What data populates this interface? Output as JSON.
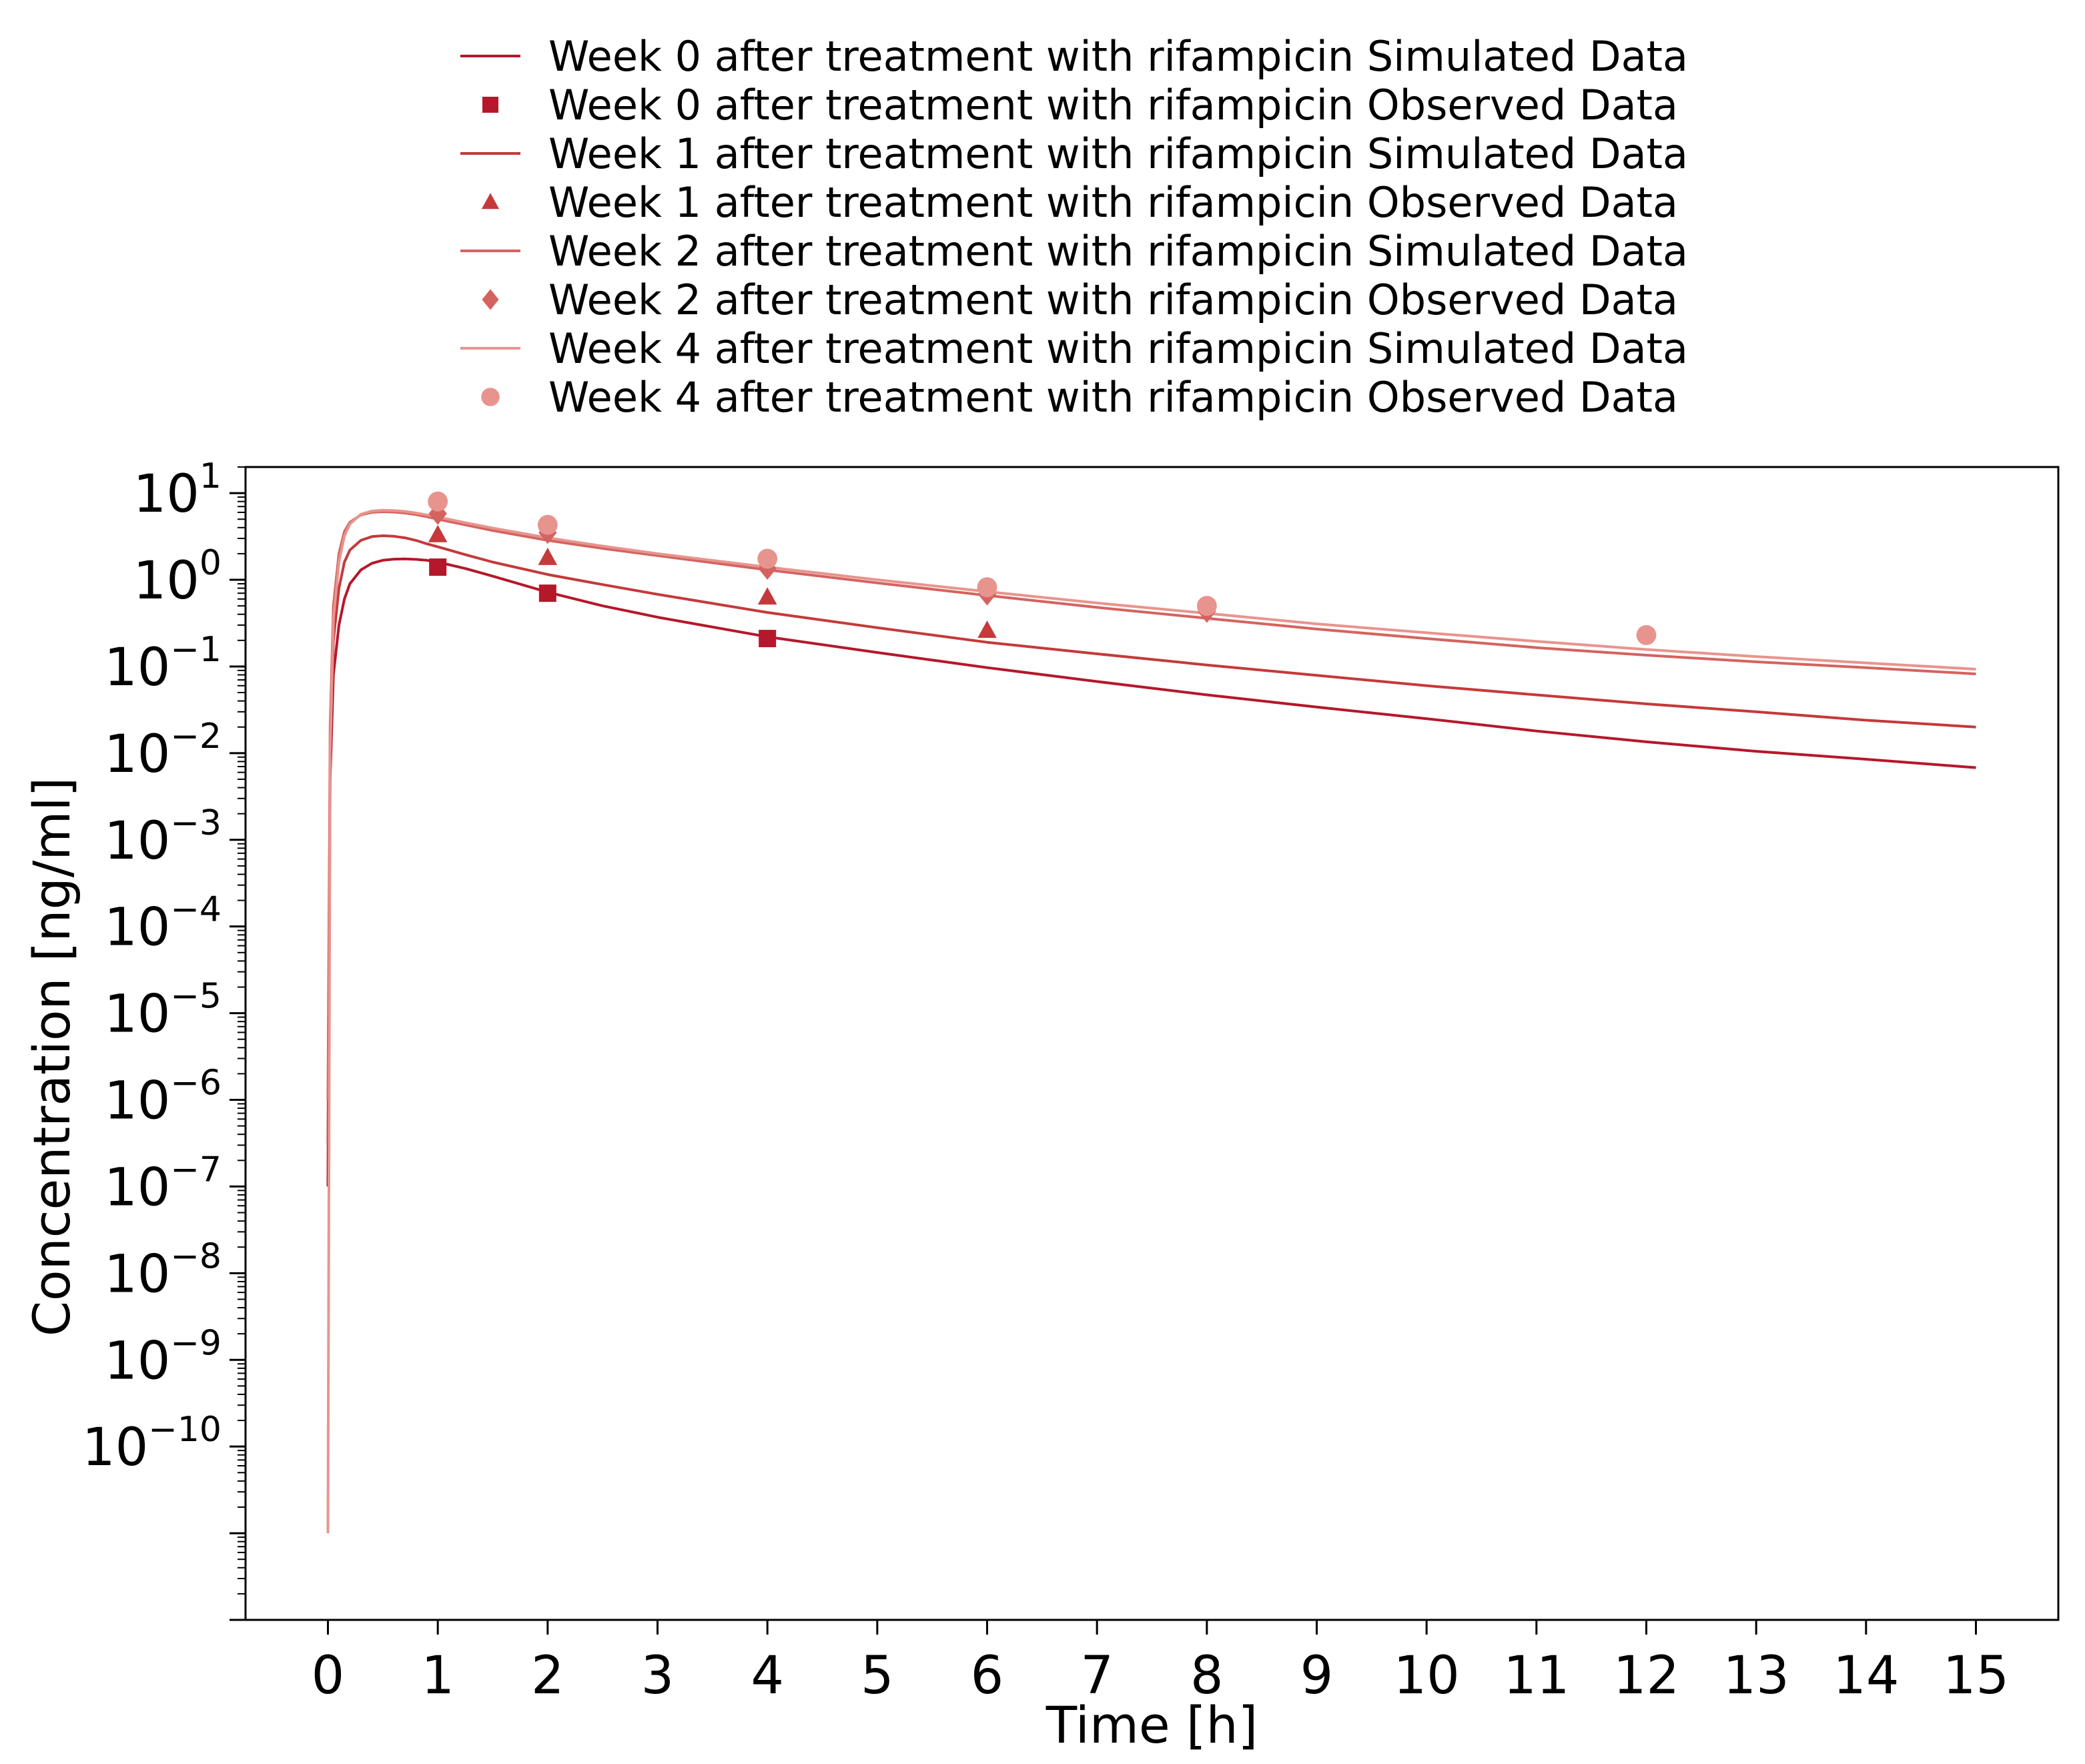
{
  "chart_data": {
    "type": "line",
    "xlabel": "Time [h]",
    "ylabel": "Concentration [ng/ml]",
    "xlim": [
      -0.75,
      15.75
    ],
    "x_ticks": [
      0,
      1,
      2,
      3,
      4,
      5,
      6,
      7,
      8,
      9,
      10,
      11,
      12,
      13,
      14,
      15
    ],
    "y_scale": "log",
    "ylim": [
      1e-12,
      20
    ],
    "y_tick_exponents": [
      1,
      0,
      -1,
      -2,
      -3,
      -4,
      -5,
      -6,
      -7,
      -8,
      -9,
      -10
    ],
    "y_tick_base": "10",
    "grid": false,
    "legend_position": "top-center",
    "series": [
      {
        "name": "Week 0 after treatment with rifampicin Simulated Data",
        "kind": "line",
        "color": "#b5172b",
        "x": [
          0,
          0.02,
          0.05,
          0.1,
          0.15,
          0.2,
          0.3,
          0.4,
          0.5,
          0.6,
          0.7,
          0.8,
          0.9,
          1.0,
          1.25,
          1.5,
          2.0,
          2.5,
          3.0,
          4.0,
          5.0,
          6.0,
          7.0,
          8.0,
          9.0,
          10.0,
          11.0,
          12.0,
          13.0,
          14.0,
          15.0
        ],
        "y": [
          1e-07,
          0.005,
          0.08,
          0.3,
          0.6,
          0.9,
          1.3,
          1.55,
          1.68,
          1.73,
          1.74,
          1.72,
          1.68,
          1.6,
          1.35,
          1.1,
          0.72,
          0.5,
          0.37,
          0.22,
          0.145,
          0.097,
          0.067,
          0.047,
          0.034,
          0.025,
          0.018,
          0.0135,
          0.0105,
          0.0085,
          0.0068
        ]
      },
      {
        "name": "Week 0 after treatment with rifampicin Observed Data",
        "kind": "scatter",
        "marker": "square",
        "color": "#b5172b",
        "x": [
          1,
          2,
          4
        ],
        "y": [
          1.4,
          0.7,
          0.21
        ]
      },
      {
        "name": "Week 1 after treatment with rifampicin Simulated Data",
        "kind": "line",
        "color": "#c43a3a",
        "x": [
          0,
          0.02,
          0.05,
          0.1,
          0.15,
          0.2,
          0.3,
          0.4,
          0.5,
          0.6,
          0.7,
          0.8,
          0.9,
          1.0,
          1.25,
          1.5,
          2.0,
          2.5,
          3.0,
          4.0,
          5.0,
          6.0,
          7.0,
          8.0,
          9.0,
          10.0,
          11.0,
          12.0,
          13.0,
          14.0,
          15.0
        ],
        "y": [
          3e-07,
          0.01,
          0.2,
          0.8,
          1.6,
          2.2,
          2.85,
          3.15,
          3.22,
          3.18,
          3.05,
          2.85,
          2.6,
          2.4,
          1.95,
          1.6,
          1.15,
          0.88,
          0.68,
          0.42,
          0.28,
          0.19,
          0.14,
          0.104,
          0.079,
          0.06,
          0.047,
          0.037,
          0.03,
          0.024,
          0.02
        ]
      },
      {
        "name": "Week 1 after treatment with rifampicin Observed Data",
        "kind": "scatter",
        "marker": "triangle",
        "color": "#c43a3a",
        "x": [
          1,
          2,
          4,
          6
        ],
        "y": [
          3.3,
          1.8,
          0.63,
          0.26
        ]
      },
      {
        "name": "Week 2 after treatment with rifampicin Simulated Data",
        "kind": "line",
        "color": "#d4635f",
        "x": [
          0,
          0.02,
          0.05,
          0.1,
          0.15,
          0.2,
          0.3,
          0.4,
          0.5,
          0.6,
          0.7,
          0.8,
          0.9,
          1.0,
          1.25,
          1.5,
          2.0,
          2.5,
          3.0,
          4.0,
          5.0,
          6.0,
          7.0,
          8.0,
          9.0,
          10.0,
          11.0,
          12.0,
          13.0,
          14.0,
          15.0
        ],
        "y": [
          1e-06,
          0.02,
          0.5,
          2.0,
          3.6,
          4.6,
          5.6,
          6.0,
          6.1,
          6.05,
          5.9,
          5.65,
          5.35,
          5.0,
          4.3,
          3.7,
          2.85,
          2.3,
          1.9,
          1.3,
          0.92,
          0.66,
          0.48,
          0.36,
          0.27,
          0.21,
          0.165,
          0.135,
          0.113,
          0.097,
          0.082
        ]
      },
      {
        "name": "Week 2 after treatment with rifampicin Observed Data",
        "kind": "scatter",
        "marker": "diamond",
        "color": "#d4635f",
        "x": [
          1,
          2,
          4,
          6,
          8
        ],
        "y": [
          5.8,
          3.5,
          1.35,
          0.68,
          0.43
        ]
      },
      {
        "name": "Week 4 after treatment with rifampicin Simulated Data",
        "kind": "line",
        "color": "#e8948e",
        "x": [
          0,
          0.02,
          0.05,
          0.1,
          0.15,
          0.2,
          0.3,
          0.4,
          0.5,
          0.6,
          0.7,
          0.8,
          0.9,
          1.0,
          1.25,
          1.5,
          2.0,
          2.5,
          3.0,
          4.0,
          5.0,
          6.0,
          7.0,
          8.0,
          9.0,
          10.0,
          11.0,
          12.0,
          13.0,
          14.0,
          15.0
        ],
        "y": [
          1e-11,
          0.01,
          0.35,
          1.6,
          3.2,
          4.4,
          5.7,
          6.2,
          6.35,
          6.3,
          6.15,
          5.9,
          5.6,
          5.3,
          4.55,
          3.95,
          3.05,
          2.45,
          2.0,
          1.4,
          1.0,
          0.73,
          0.54,
          0.41,
          0.31,
          0.245,
          0.195,
          0.157,
          0.13,
          0.11,
          0.093
        ]
      },
      {
        "name": "Week 4 after treatment with rifampicin Observed Data",
        "kind": "scatter",
        "marker": "circle",
        "color": "#e8948e",
        "x": [
          1,
          2,
          4,
          6,
          8,
          12
        ],
        "y": [
          8.0,
          4.3,
          1.75,
          0.82,
          0.5,
          0.23
        ]
      }
    ]
  }
}
